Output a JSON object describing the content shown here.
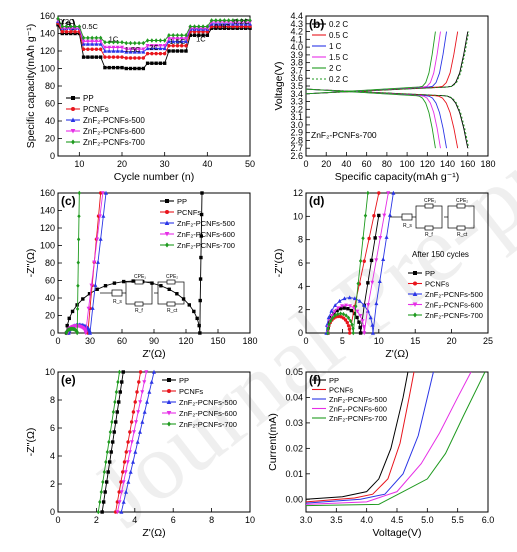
{
  "watermark": "Journal Pre-proofs",
  "colors": {
    "PP": "#000000",
    "PCNFs": "#e8141c",
    "ZnF2-PCNFs-500": "#2a35e6",
    "ZnF2-PCNFs-600": "#e62ee6",
    "ZnF2-PCNFs-700": "#1f9a1f"
  },
  "chart_data": [
    {
      "id": "a",
      "type": "line",
      "label": "(a)",
      "xlabel": "Cycle number (n)",
      "ylabel": "Specific capacity(mAh g⁻¹)",
      "xlim": [
        5,
        50
      ],
      "ylim": [
        0,
        160
      ],
      "xticks": [
        10,
        20,
        30,
        40,
        50
      ],
      "yticks": [
        0,
        20,
        40,
        60,
        80,
        100,
        120,
        140,
        160
      ],
      "rate_labels": [
        {
          "t": "0.2C",
          "x": 7,
          "y": 151
        },
        {
          "t": "0.5C",
          "x": 12.5,
          "y": 145
        },
        {
          "t": "1C",
          "x": 18,
          "y": 131
        },
        {
          "t": "1.5C",
          "x": 22.5,
          "y": 119
        },
        {
          "t": "2C",
          "x": 27.5,
          "y": 121
        },
        {
          "t": "1.5C",
          "x": 33,
          "y": 128
        },
        {
          "t": "1C",
          "x": 38.5,
          "y": 131
        },
        {
          "t": "0.5C",
          "x": 43.5,
          "y": 145
        },
        {
          "t": "0.2C",
          "x": 48,
          "y": 151
        }
      ],
      "legend": [
        "PP",
        "PCNFs",
        "ZnF₂-PCNFs-500",
        "ZnF₂-PCNFs-600",
        "ZnF₂-PCNFs-700"
      ],
      "series": [
        {
          "name": "PP",
          "levels": [
            150,
            140,
            113,
            101,
            100,
            106,
            120,
            138,
            146
          ]
        },
        {
          "name": "PCNFs",
          "levels": [
            152,
            142,
            122,
            113,
            112,
            117,
            126,
            142,
            148
          ]
        },
        {
          "name": "ZnF₂-PCNFs-500",
          "levels": [
            154,
            146,
            128,
            120,
            119,
            123,
            131,
            145,
            151
          ]
        },
        {
          "name": "ZnF₂-PCNFs-600",
          "levels": [
            155,
            146,
            131,
            124,
            122,
            126,
            134,
            146,
            153
          ]
        },
        {
          "name": "ZnF₂-PCNFs-700",
          "levels": [
            157,
            148,
            135,
            130,
            129,
            132,
            138,
            148,
            155
          ]
        }
      ]
    },
    {
      "id": "b",
      "type": "line",
      "label": "(b)",
      "xlabel": "Specific capacity(mAh g⁻¹)",
      "ylabel": "Voltage(V)",
      "xlim": [
        0,
        180
      ],
      "ylim": [
        2.6,
        4.4
      ],
      "xticks": [
        0,
        20,
        40,
        60,
        80,
        100,
        120,
        140,
        160,
        180
      ],
      "yticks": [
        2.6,
        2.7,
        2.8,
        2.9,
        3.0,
        3.1,
        3.2,
        3.3,
        3.4,
        3.5,
        3.6,
        3.7,
        3.8,
        3.9,
        4.0,
        4.1,
        4.2,
        4.3,
        4.4
      ],
      "annotation": "ZnF₂-PCNFs-700",
      "legend": [
        "0.2 C",
        "0.5 C",
        "1 C",
        "1.5 C",
        "2 C",
        "0.2 C"
      ],
      "series": [
        {
          "name": "0.2 C",
          "color": "#000000",
          "dash": "",
          "cap": 160
        },
        {
          "name": "0.5 C",
          "color": "#e8141c",
          "dash": "",
          "cap": 150
        },
        {
          "name": "1 C",
          "color": "#2a35e6",
          "dash": "",
          "cap": 139
        },
        {
          "name": "1.5 C",
          "color": "#e62ee6",
          "dash": "",
          "cap": 133
        },
        {
          "name": "2 C",
          "color": "#1f9a1f",
          "dash": "",
          "cap": 128
        },
        {
          "name": "0.2 C",
          "color": "#1f9a1f",
          "dash": "2,2",
          "cap": 161
        }
      ]
    },
    {
      "id": "c",
      "type": "scatter",
      "label": "(c)",
      "xlabel": "Z'(Ω)",
      "ylabel": "-Z''(Ω)",
      "xlim": [
        0,
        180
      ],
      "ylim": [
        0,
        160
      ],
      "xticks": [
        0,
        30,
        60,
        90,
        120,
        150,
        180
      ],
      "yticks": [
        0,
        20,
        40,
        60,
        80,
        100,
        120,
        140,
        160
      ],
      "legend": [
        "PP",
        "PCNFs",
        "ZnF₂-PCNFs-500",
        "ZnF₂-PCNFs-600",
        "ZnF₂-PCNFs-700"
      ],
      "circuit": {
        "cpe1": "CPE₁",
        "cpe2": "CPE₂",
        "r1": "R_s",
        "r2": "R_f",
        "r3": "R_ct"
      },
      "series": [
        {
          "name": "PP",
          "x0": 8,
          "x1": 133,
          "tail": [
            135,
            160
          ]
        },
        {
          "name": "PCNFs",
          "x0": 10,
          "x1": 28,
          "tail": [
            40,
            160
          ]
        },
        {
          "name": "ZnF₂-PCNFs-500",
          "x0": 10,
          "x1": 30,
          "tail": [
            45,
            160
          ]
        },
        {
          "name": "ZnF₂-PCNFs-600",
          "x0": 9,
          "x1": 26,
          "tail": [
            42,
            160
          ]
        },
        {
          "name": "ZnF₂-PCNFs-700",
          "x0": 8,
          "x1": 18,
          "tail": [
            20,
            160
          ]
        }
      ]
    },
    {
      "id": "d",
      "type": "scatter",
      "label": "(d)",
      "xlabel": "Z'(Ω)",
      "ylabel": "-Z''(Ω)",
      "xlim": [
        0,
        25
      ],
      "ylim": [
        0,
        12
      ],
      "xticks": [
        0,
        5,
        10,
        15,
        20,
        25
      ],
      "yticks": [
        0,
        2,
        4,
        6,
        8,
        10,
        12
      ],
      "annotation": "After 150 cycles",
      "legend": [
        "PP",
        "PCNFs",
        "ZnF₂-PCNFs-500",
        "ZnF₂-PCNFs-600",
        "ZnF₂-PCNFs-700"
      ],
      "circuit": {
        "cpe1": "CPE₁",
        "cpe2": "CPE₂",
        "r1": "R_s",
        "r2": "R_f",
        "r3": "R_ct"
      },
      "series": [
        {
          "name": "PP",
          "x0": 3,
          "x1": 7.5,
          "tail": [
            10.5,
            12
          ]
        },
        {
          "name": "PCNFs",
          "x0": 3,
          "x1": 6,
          "tail": [
            10,
            12
          ]
        },
        {
          "name": "ZnF₂-PCNFs-500",
          "x0": 2.8,
          "x1": 9.2,
          "tail": [
            12,
            12
          ]
        },
        {
          "name": "ZnF₂-PCNFs-600",
          "x0": 3,
          "x1": 8,
          "tail": [
            11.3,
            12
          ]
        },
        {
          "name": "ZnF₂-PCNFs-700",
          "x0": 3,
          "x1": 6.5,
          "tail": [
            8.5,
            12
          ]
        }
      ]
    },
    {
      "id": "e",
      "type": "scatter",
      "label": "(e)",
      "xlabel": "Z'(Ω)",
      "ylabel": "-Z''(Ω)",
      "xlim": [
        0,
        10
      ],
      "ylim": [
        0,
        10
      ],
      "xticks": [
        0,
        2,
        4,
        6,
        8,
        10
      ],
      "yticks": [
        0,
        2,
        4,
        6,
        8,
        10
      ],
      "legend": [
        "PP",
        "PCNFs",
        "ZnF₂-PCNFs-500",
        "ZnF₂-PCNFs-600",
        "ZnF₂-PCNFs-700"
      ],
      "series": [
        {
          "name": "PP",
          "pts": [
            [
              2.3,
              0
            ],
            [
              3.4,
              10
            ]
          ]
        },
        {
          "name": "PCNFs",
          "pts": [
            [
              3.0,
              0
            ],
            [
              4.3,
              10
            ]
          ]
        },
        {
          "name": "ZnF₂-PCNFs-500",
          "pts": [
            [
              3.3,
              0
            ],
            [
              5.0,
              10
            ]
          ]
        },
        {
          "name": "ZnF₂-PCNFs-600",
          "pts": [
            [
              3.1,
              0
            ],
            [
              4.6,
              10
            ]
          ]
        },
        {
          "name": "ZnF₂-PCNFs-700",
          "pts": [
            [
              2.1,
              0
            ],
            [
              3.2,
              10
            ]
          ]
        }
      ]
    },
    {
      "id": "f",
      "type": "line",
      "label": "(f)",
      "xlabel": "Voltage(V)",
      "ylabel": "Current(mA)",
      "xlim": [
        3.0,
        6.0
      ],
      "ylim": [
        -0.005,
        0.05
      ],
      "xticks": [
        3.0,
        3.5,
        4.0,
        4.5,
        5.0,
        5.5,
        6.0
      ],
      "yticks": [
        0.0,
        0.01,
        0.02,
        0.03,
        0.04,
        0.05
      ],
      "legend": [
        "PP",
        "PCNFs",
        "ZnF₂-PCNFs-500",
        "ZnF₂-PCNFs-600",
        "ZnF₂-PCNFs-700"
      ],
      "series": [
        {
          "name": "PP",
          "pts": [
            [
              3.0,
              0.0
            ],
            [
              3.6,
              0.001
            ],
            [
              4.0,
              0.003
            ],
            [
              4.2,
              0.008
            ],
            [
              4.4,
              0.02
            ],
            [
              4.6,
              0.04
            ],
            [
              4.68,
              0.05
            ]
          ]
        },
        {
          "name": "PCNFs",
          "pts": [
            [
              3.0,
              -0.001
            ],
            [
              3.8,
              0.0005
            ],
            [
              4.1,
              0.002
            ],
            [
              4.35,
              0.008
            ],
            [
              4.55,
              0.022
            ],
            [
              4.7,
              0.04
            ],
            [
              4.78,
              0.05
            ]
          ]
        },
        {
          "name": "ZnF₂-PCNFs-500",
          "pts": [
            [
              3.0,
              -0.0015
            ],
            [
              3.9,
              0.0
            ],
            [
              4.3,
              0.002
            ],
            [
              4.6,
              0.01
            ],
            [
              4.85,
              0.025
            ],
            [
              5.05,
              0.045
            ],
            [
              5.1,
              0.05
            ]
          ]
        },
        {
          "name": "ZnF₂-PCNFs-600",
          "pts": [
            [
              3.0,
              -0.002
            ],
            [
              4.0,
              -0.001
            ],
            [
              4.5,
              0.003
            ],
            [
              4.9,
              0.014
            ],
            [
              5.2,
              0.026
            ],
            [
              5.5,
              0.04
            ],
            [
              5.72,
              0.05
            ]
          ]
        },
        {
          "name": "ZnF₂-PCNFs-700",
          "pts": [
            [
              3.0,
              -0.0025
            ],
            [
              4.2,
              -0.002
            ],
            [
              4.6,
              0.003
            ],
            [
              5.0,
              0.008
            ],
            [
              5.3,
              0.018
            ],
            [
              5.6,
              0.033
            ],
            [
              5.95,
              0.05
            ]
          ]
        }
      ]
    }
  ]
}
